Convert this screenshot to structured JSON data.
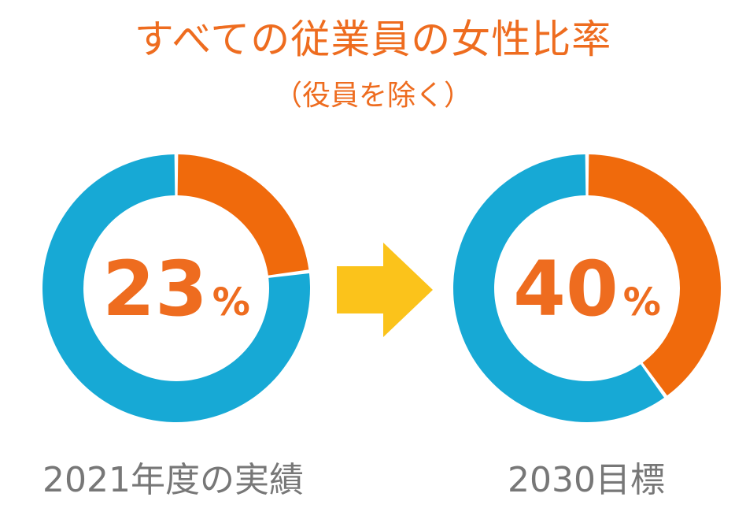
{
  "title": "すべての従業員の女性比率",
  "subtitle": "（役員を除く）",
  "colors": {
    "female": "#f06a0c",
    "other": "#17a9d5",
    "arrow": "#fbc31b",
    "text_accent": "#ee6c1f",
    "caption": "#777777"
  },
  "chart_data": [
    {
      "type": "pie",
      "variant": "donut",
      "values": [
        23,
        77
      ],
      "value_label": "23",
      "unit": "%",
      "caption": "2021年度の実績"
    },
    {
      "type": "pie",
      "variant": "donut",
      "values": [
        40,
        60
      ],
      "value_label": "40",
      "unit": "%",
      "caption": "2030目標"
    }
  ],
  "arrow_icon": "right-arrow-icon"
}
